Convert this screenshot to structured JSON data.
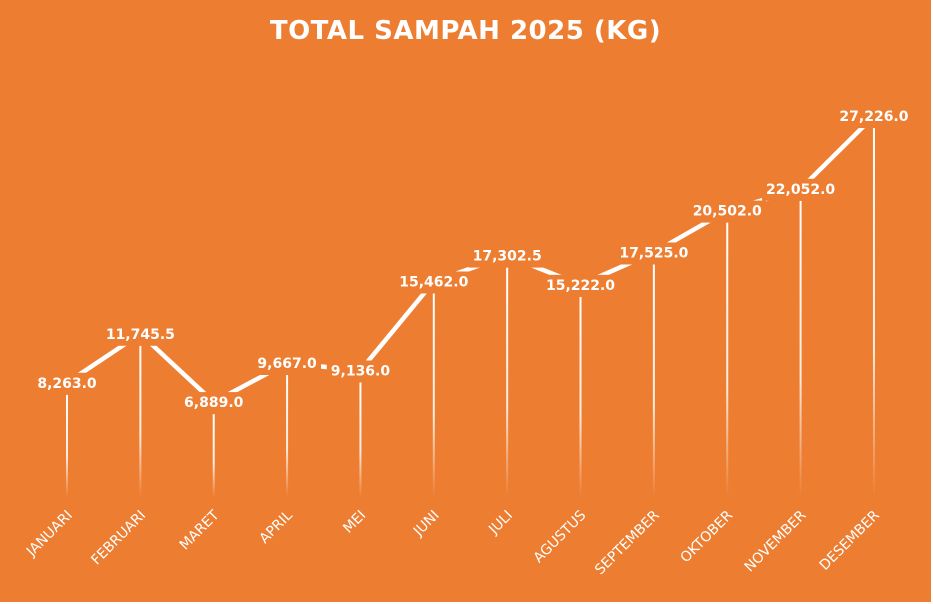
{
  "chart_data": {
    "type": "line",
    "title": "TOTAL SAMPAH 2025 (KG)",
    "categories": [
      "JANUARI",
      "FEBRUARI",
      "MARET",
      "APRIL",
      "MEI",
      "JUNI",
      "JULI",
      "AGUSTUS",
      "SEPTEMBER",
      "OKTOBER",
      "NOVEMBER",
      "DESEMBER"
    ],
    "values": [
      8263.0,
      11745.5,
      6889.0,
      9667.0,
      9136.0,
      15462.0,
      17302.5,
      15222.0,
      17525.0,
      20502.0,
      22052.0,
      27226.0
    ],
    "data_labels": [
      "8,263.0",
      "11,745.5",
      "6,889.0",
      "9,667.0",
      "9,136.0",
      "15,462.0",
      "17,302.5",
      "15,222.0",
      "17,525.0",
      "20,502.0",
      "22,052.0",
      "27,226.0"
    ],
    "xlabel": "",
    "ylabel": "",
    "ylim": [
      0,
      27226
    ],
    "grid": false,
    "legend": "none",
    "colors": {
      "background": "#ED7D31",
      "line": "#FFFFFF",
      "text": "#FFFFFF"
    }
  }
}
